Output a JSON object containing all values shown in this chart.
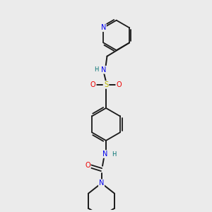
{
  "bg_color": "#ebebeb",
  "bond_color": "#1a1a1a",
  "atom_colors": {
    "N": "#0000ee",
    "O": "#ee0000",
    "S": "#bbbb00",
    "H": "#007070",
    "C": "#1a1a1a"
  },
  "figsize": [
    3.0,
    3.0
  ],
  "dpi": 100,
  "xlim": [
    0,
    10
  ],
  "ylim": [
    0,
    10
  ]
}
